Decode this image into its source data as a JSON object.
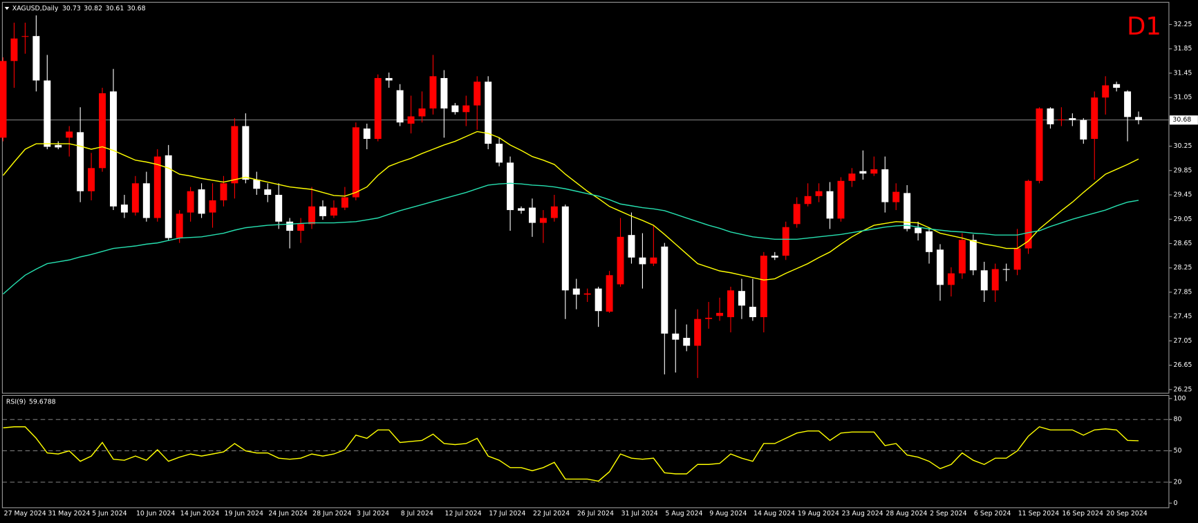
{
  "chart_data": [
    {
      "type": "candlestick",
      "title": "XAGUSD,Daily",
      "annotation": "D1",
      "categories": [
        "27 May 2024",
        null,
        null,
        null,
        "31 May 2024",
        null,
        null,
        null,
        "5 Jun 2024",
        null,
        null,
        null,
        "10 Jun 2024",
        null,
        null,
        null,
        "14 Jun 2024",
        null,
        null,
        null,
        "19 Jun 2024",
        null,
        null,
        null,
        "24 Jun 2024",
        null,
        null,
        null,
        "28 Jun 2024",
        null,
        null,
        null,
        "3 Jul 2024",
        null,
        null,
        null,
        "8 Jul 2024",
        null,
        null,
        null,
        "12 Jul 2024",
        null,
        null,
        null,
        "17 Jul 2024",
        null,
        null,
        null,
        "22 Jul 2024",
        null,
        null,
        null,
        "26 Jul 2024",
        null,
        null,
        null,
        "31 Jul 2024",
        null,
        null,
        null,
        "5 Aug 2024",
        null,
        null,
        null,
        "9 Aug 2024",
        null,
        null,
        null,
        "14 Aug 2024",
        null,
        null,
        null,
        "19 Aug 2024",
        null,
        null,
        null,
        "23 Aug 2024",
        null,
        null,
        null,
        "28 Aug 2024",
        null,
        null,
        null,
        "2 Sep 2024",
        null,
        null,
        null,
        "6 Sep 2024",
        null,
        null,
        null,
        "11 Sep 2024",
        null,
        null,
        null,
        "16 Sep 2024",
        null,
        null,
        null,
        "20 Sep 2024",
        null,
        null,
        null
      ],
      "open": [
        30.39,
        31.65,
        32.05,
        32.06,
        31.33,
        30.27,
        30.39,
        30.48,
        29.51,
        29.89,
        31.15,
        29.29,
        29.16,
        29.64,
        29.07,
        30.1,
        28.74,
        29.16,
        29.54,
        29.16,
        29.36,
        29.64,
        30.58,
        29.7,
        29.54,
        29.45,
        29.01,
        28.86,
        28.97,
        29.26,
        29.11,
        29.24,
        29.41,
        30.54,
        30.37,
        31.37,
        31.17,
        30.62,
        30.74,
        30.87,
        31.37,
        30.92,
        30.81,
        30.92,
        31.31,
        30.29,
        29.98,
        29.23,
        29.24,
        28.99,
        29.07,
        29.26,
        27.91,
        27.81,
        27.91,
        27.53,
        27.98,
        28.79,
        28.42,
        28.32,
        28.6,
        27.17,
        27.1,
        26.97,
        27.41,
        27.46,
        27.44,
        27.87,
        27.61,
        27.44,
        28.45,
        28.45,
        28.97,
        29.3,
        29.43,
        29.51,
        29.06,
        29.68,
        29.84,
        29.8,
        29.87,
        29.33,
        29.48,
        28.91,
        28.85,
        28.55,
        27.97,
        28.16,
        28.71,
        28.21,
        27.88,
        28.23,
        28.22,
        28.57,
        29.68,
        30.87,
        30.68,
        30.71,
        30.68,
        30.37,
        31.05,
        31.27,
        31.15,
        30.73
      ],
      "high": [
        31.71,
        32.28,
        32.28,
        32.4,
        31.75,
        30.33,
        30.58,
        30.89,
        30.14,
        31.21,
        31.52,
        29.45,
        29.76,
        29.83,
        30.2,
        30.27,
        29.2,
        29.58,
        29.64,
        29.64,
        29.76,
        30.71,
        30.79,
        29.83,
        29.64,
        29.64,
        29.07,
        29.07,
        29.58,
        29.36,
        29.36,
        29.58,
        30.64,
        30.62,
        31.43,
        31.46,
        31.27,
        31.08,
        31.15,
        31.75,
        31.5,
        30.96,
        31.08,
        31.4,
        31.4,
        30.39,
        30.08,
        29.26,
        29.39,
        29.2,
        29.45,
        29.29,
        28.07,
        27.91,
        27.94,
        28.2,
        29.07,
        29.16,
        28.82,
        28.95,
        28.66,
        27.57,
        27.32,
        27.57,
        27.69,
        27.76,
        27.94,
        28.07,
        28.07,
        28.51,
        28.51,
        29.01,
        29.41,
        29.64,
        29.64,
        29.66,
        29.74,
        29.89,
        30.18,
        30.08,
        30.08,
        29.64,
        29.61,
        29.01,
        28.91,
        28.64,
        28.26,
        28.82,
        28.8,
        28.35,
        28.32,
        28.32,
        28.89,
        29.7,
        30.89,
        30.89,
        30.89,
        30.79,
        30.71,
        31.15,
        31.4,
        31.31,
        31.17,
        30.82
      ],
      "low": [
        30.33,
        31.21,
        31.77,
        31.15,
        30.2,
        30.2,
        30.08,
        29.33,
        29.36,
        29.83,
        29.2,
        29.07,
        29.11,
        29.01,
        29.01,
        28.7,
        28.66,
        29.01,
        29.07,
        28.91,
        29.26,
        29.39,
        29.64,
        29.45,
        29.33,
        28.89,
        28.57,
        28.66,
        28.89,
        29.04,
        29.07,
        29.2,
        29.36,
        30.2,
        30.33,
        31.21,
        30.58,
        30.46,
        30.64,
        30.77,
        30.39,
        30.77,
        30.58,
        30.52,
        30.2,
        29.92,
        28.86,
        29.14,
        28.76,
        28.66,
        29.01,
        27.41,
        27.57,
        27.69,
        27.28,
        27.51,
        27.94,
        28.32,
        27.91,
        28.28,
        26.5,
        26.53,
        26.88,
        26.44,
        27.25,
        27.38,
        27.19,
        27.41,
        27.38,
        27.19,
        28.38,
        28.38,
        28.91,
        29.26,
        29.33,
        28.89,
        29.01,
        29.58,
        29.7,
        29.76,
        29.16,
        29.2,
        28.85,
        28.7,
        28.32,
        27.71,
        27.78,
        28.07,
        28.13,
        27.69,
        27.69,
        28.03,
        28.13,
        28.48,
        29.64,
        30.54,
        30.58,
        30.58,
        30.29,
        29.7,
        30.77,
        31.15,
        30.33,
        30.61
      ],
      "close": [
        31.65,
        32.02,
        32.06,
        31.33,
        30.24,
        30.23,
        30.49,
        29.51,
        29.89,
        31.12,
        29.26,
        29.16,
        29.64,
        29.07,
        30.08,
        28.74,
        29.14,
        29.51,
        29.14,
        29.36,
        29.64,
        30.58,
        29.7,
        29.55,
        29.45,
        29.01,
        28.86,
        28.97,
        29.26,
        29.1,
        29.24,
        29.41,
        30.56,
        30.37,
        31.37,
        31.33,
        30.64,
        30.74,
        30.87,
        31.4,
        30.87,
        30.81,
        30.92,
        31.31,
        30.29,
        29.98,
        29.2,
        29.19,
        28.99,
        29.07,
        29.26,
        27.88,
        27.81,
        27.83,
        27.54,
        28.13,
        28.76,
        28.42,
        28.31,
        28.42,
        27.17,
        27.07,
        26.97,
        27.41,
        27.43,
        27.51,
        27.88,
        27.63,
        27.44,
        28.45,
        28.42,
        28.92,
        29.3,
        29.43,
        29.51,
        29.06,
        29.68,
        29.8,
        29.8,
        29.87,
        29.33,
        29.5,
        28.89,
        28.82,
        28.51,
        27.97,
        28.16,
        28.71,
        28.21,
        27.88,
        28.23,
        28.22,
        28.57,
        29.68,
        30.87,
        30.61,
        30.69,
        30.68,
        30.36,
        31.05,
        31.25,
        31.21,
        30.73,
        30.68
      ],
      "up_color": "#ff0000",
      "down_color": "#ffffff",
      "series": [
        {
          "color": "#ffff00",
          "values": [
            29.77,
            29.99,
            30.2,
            30.29,
            30.29,
            30.29,
            30.29,
            30.25,
            30.2,
            30.24,
            30.18,
            30.1,
            30.02,
            29.99,
            29.95,
            29.89,
            29.79,
            29.76,
            29.72,
            29.69,
            29.66,
            29.7,
            29.74,
            29.7,
            29.66,
            29.62,
            29.58,
            29.56,
            29.54,
            29.49,
            29.44,
            29.43,
            29.49,
            29.58,
            29.77,
            29.92,
            29.99,
            30.05,
            30.13,
            30.2,
            30.27,
            30.33,
            30.41,
            30.49,
            30.46,
            30.39,
            30.27,
            30.18,
            30.08,
            30.02,
            29.95,
            29.79,
            29.65,
            29.51,
            29.39,
            29.26,
            29.18,
            29.1,
            29.03,
            28.95,
            28.8,
            28.64,
            28.48,
            28.32,
            28.26,
            28.2,
            28.17,
            28.13,
            28.09,
            28.05,
            28.07,
            28.16,
            28.24,
            28.32,
            28.42,
            28.51,
            28.64,
            28.76,
            28.86,
            28.95,
            28.98,
            29.01,
            29.0,
            28.99,
            28.91,
            28.82,
            28.78,
            28.74,
            28.69,
            28.64,
            28.61,
            28.57,
            28.57,
            28.69,
            28.89,
            29.04,
            29.19,
            29.33,
            29.49,
            29.64,
            29.79,
            29.87,
            29.95,
            30.04
          ]
        },
        {
          "color": "#26e0b0",
          "values": [
            27.82,
            27.98,
            28.13,
            28.23,
            28.32,
            28.35,
            28.38,
            28.43,
            28.47,
            28.52,
            28.57,
            28.59,
            28.61,
            28.64,
            28.66,
            28.7,
            28.74,
            28.75,
            28.76,
            28.79,
            28.82,
            28.87,
            28.91,
            28.93,
            28.95,
            28.96,
            28.97,
            28.98,
            28.99,
            28.99,
            28.99,
            29.0,
            29.01,
            29.04,
            29.07,
            29.13,
            29.19,
            29.24,
            29.29,
            29.34,
            29.39,
            29.44,
            29.49,
            29.55,
            29.61,
            29.63,
            29.64,
            29.63,
            29.61,
            29.6,
            29.58,
            29.55,
            29.51,
            29.47,
            29.43,
            29.37,
            29.3,
            29.27,
            29.24,
            29.22,
            29.19,
            29.13,
            29.07,
            29.01,
            28.95,
            28.9,
            28.84,
            28.8,
            28.76,
            28.74,
            28.72,
            28.72,
            28.72,
            28.74,
            28.76,
            28.78,
            28.8,
            28.83,
            28.86,
            28.89,
            28.92,
            28.94,
            28.95,
            28.92,
            28.89,
            28.87,
            28.85,
            28.84,
            28.82,
            28.81,
            28.79,
            28.79,
            28.79,
            28.83,
            28.86,
            28.93,
            28.99,
            29.05,
            29.1,
            29.15,
            29.2,
            29.27,
            29.33,
            29.36
          ]
        }
      ],
      "ylim": [
        26.19,
        32.59
      ],
      "yticks": [
        26.25,
        26.65,
        27.05,
        27.45,
        27.85,
        28.25,
        28.65,
        29.05,
        29.45,
        29.85,
        30.25,
        31.05,
        31.45,
        31.85,
        32.25
      ],
      "last_price_line": true
    },
    {
      "type": "line",
      "title": "RSI(9)",
      "color": "#ffff00",
      "values": [
        72,
        73,
        73,
        62,
        48,
        47,
        50,
        40,
        45,
        58,
        42,
        41,
        45,
        41,
        51,
        40,
        44,
        47,
        45,
        47,
        49,
        57,
        50,
        48,
        48,
        43,
        42,
        43,
        47,
        45,
        47,
        51,
        65,
        62,
        70,
        70,
        58,
        59,
        60,
        66,
        57,
        56,
        57,
        62,
        45,
        41,
        34,
        34,
        31,
        34,
        39,
        23,
        23,
        23,
        21,
        30,
        47,
        43,
        42,
        43,
        29,
        28,
        28,
        37,
        37,
        38,
        47,
        43,
        40,
        57,
        57,
        62,
        67,
        69,
        69,
        60,
        67,
        68,
        68,
        68,
        55,
        57,
        46,
        44,
        40,
        33,
        37,
        48,
        41,
        37,
        43,
        43,
        50,
        64,
        73,
        70,
        70,
        70,
        65,
        70,
        71,
        70,
        60,
        59.6788
      ],
      "ylim": [
        0,
        100
      ],
      "yticks": [
        0,
        20,
        50,
        80,
        100
      ],
      "levels": [
        20,
        50,
        80
      ]
    }
  ]
}
